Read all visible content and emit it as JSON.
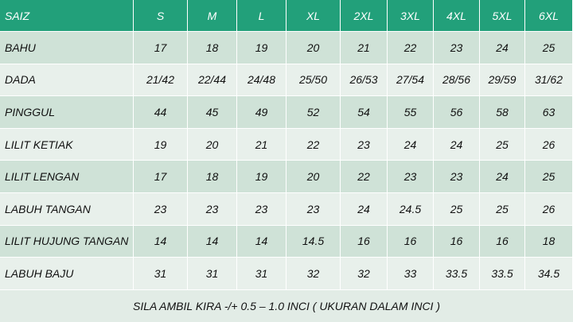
{
  "table": {
    "header": [
      "SAIZ",
      "S",
      "M",
      "L",
      "XL",
      "2XL",
      "3XL",
      "4XL",
      "5XL",
      "6XL"
    ],
    "rows": [
      [
        "BAHU",
        17,
        18,
        19,
        20,
        21,
        22,
        23,
        24,
        25
      ],
      [
        "DADA",
        "21/42",
        "22/44",
        "24/48",
        "25/50",
        "26/53",
        "27/54",
        "28/56",
        "29/59",
        "31/62"
      ],
      [
        "PINGGUL",
        44,
        45,
        49,
        52,
        54,
        55,
        56,
        58,
        63
      ],
      [
        "LILIT KETIAK",
        19,
        20,
        21,
        22,
        23,
        24,
        24,
        25,
        26
      ],
      [
        "LILIT LENGAN",
        17,
        18,
        19,
        20,
        22,
        23,
        23,
        24,
        25
      ],
      [
        "LABUH TANGAN",
        23,
        23,
        23,
        23,
        24,
        24.5,
        25,
        25,
        26
      ],
      [
        "LILIT HUJUNG TANGAN",
        14,
        14,
        14,
        14.5,
        16,
        16,
        16,
        16,
        18
      ],
      [
        "LABUH BAJU",
        31,
        31,
        31,
        32,
        32,
        33,
        33.5,
        33.5,
        34.5
      ]
    ],
    "footer": "SILA AMBIL KIRA -/+ 0.5 – 1.0 INCI ( UKURAN DALAM INCI )"
  }
}
